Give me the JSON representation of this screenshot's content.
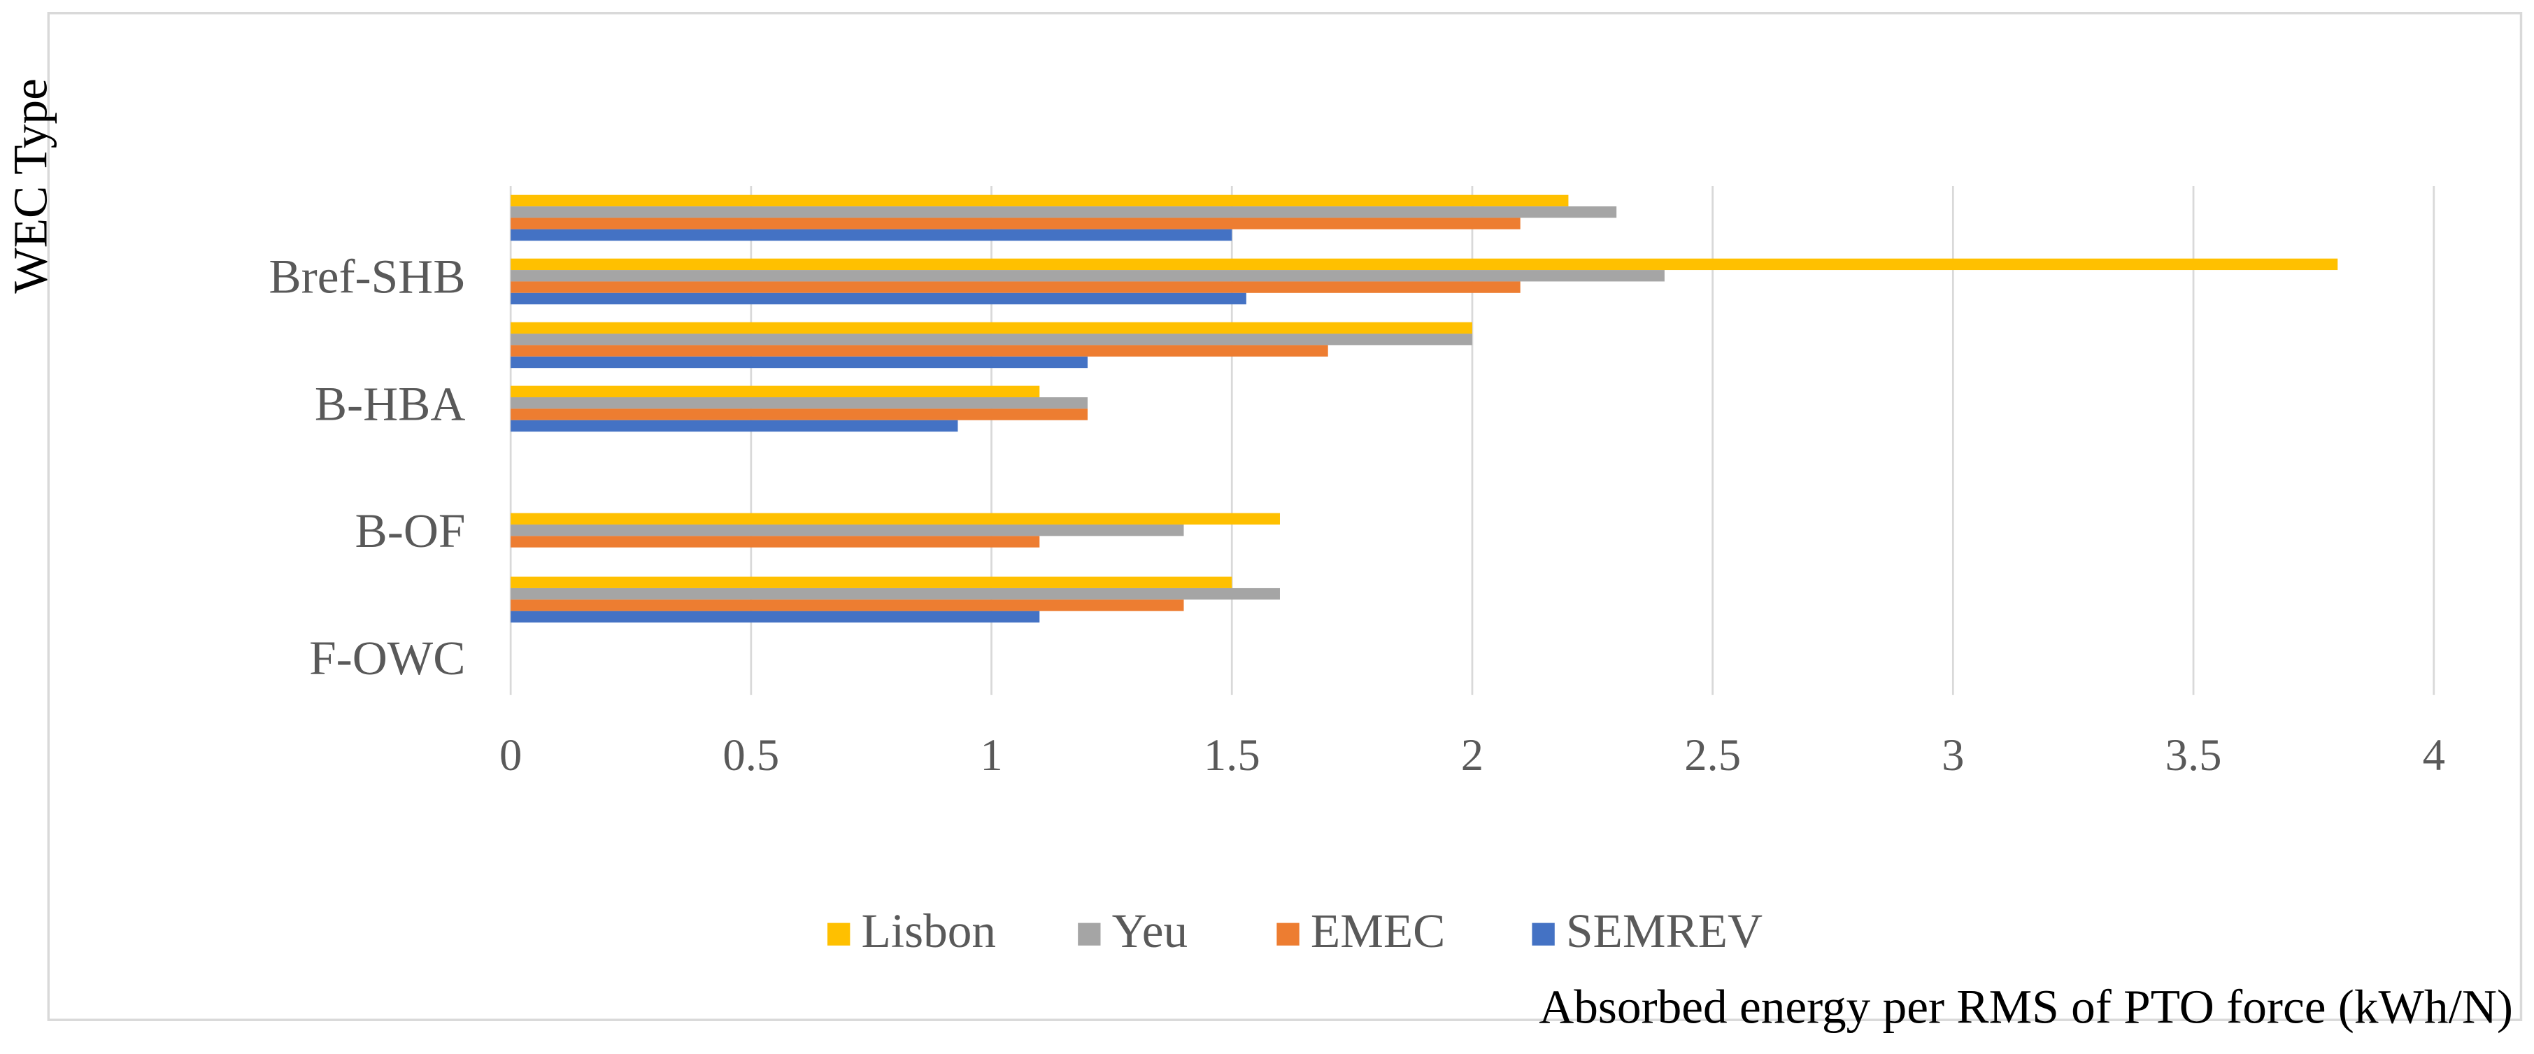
{
  "chart_data": {
    "type": "hbar",
    "x_label": "Absorbed energy per RMS of PTO force (kWh/N)",
    "y_label": "WEC Type",
    "categories": [
      "F-OWC",
      null,
      "B-OF",
      null,
      "B-HBA",
      null,
      "Bref-SHB",
      null
    ],
    "series": [
      {
        "name": "Lisbon",
        "color": "#FFC000",
        "values": [
          null,
          1.5,
          1.6,
          null,
          1.1,
          2.0,
          3.8,
          2.2
        ]
      },
      {
        "name": "Yeu",
        "color": "#A5A5A5",
        "values": [
          null,
          1.6,
          1.4,
          null,
          1.2,
          2.0,
          2.4,
          2.3
        ]
      },
      {
        "name": "EMEC",
        "color": "#ED7D31",
        "values": [
          null,
          1.4,
          1.1,
          null,
          1.2,
          1.7,
          2.1,
          2.1
        ]
      },
      {
        "name": "SEMREV",
        "color": "#4472C4",
        "values": [
          null,
          1.1,
          null,
          null,
          0.93,
          1.2,
          1.53,
          1.5
        ]
      }
    ],
    "xlim": [
      0,
      4
    ],
    "xticks": [
      0,
      0.5,
      1,
      1.5,
      2,
      2.5,
      3,
      3.5,
      4
    ],
    "grid": true,
    "legend": "bottom"
  }
}
